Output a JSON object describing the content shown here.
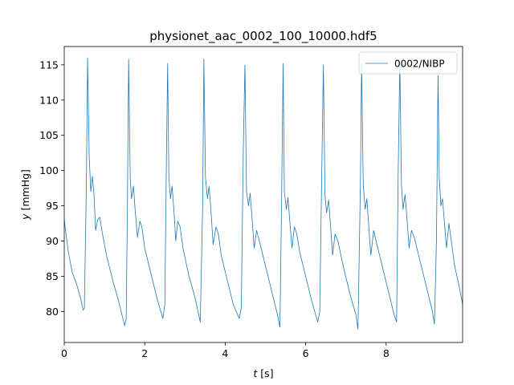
{
  "chart_data": {
    "type": "line",
    "title": "physionet_aac_0002_100_10000.hdf5",
    "xlabel_var": "t",
    "xlabel_unit": " [s]",
    "ylabel_var": "y",
    "ylabel_unit": " [mmHg]",
    "xlim": [
      0,
      9.9
    ],
    "ylim": [
      75.6,
      117.6
    ],
    "xticks": [
      0,
      2,
      4,
      6,
      8
    ],
    "yticks": [
      80,
      85,
      90,
      95,
      100,
      105,
      110,
      115
    ],
    "grid": false,
    "legend_position": "upper right",
    "line_color": "#1f77b4",
    "series": [
      {
        "name": "0002/NIBP",
        "x": [
          0.0,
          0.1,
          0.2,
          0.3,
          0.4,
          0.47,
          0.5,
          0.55,
          0.58,
          0.62,
          0.66,
          0.7,
          0.74,
          0.78,
          0.83,
          0.88,
          0.95,
          1.05,
          1.2,
          1.35,
          1.5,
          1.54,
          1.57,
          1.6,
          1.64,
          1.67,
          1.72,
          1.76,
          1.82,
          1.88,
          1.93,
          2.0,
          2.15,
          2.3,
          2.45,
          2.5,
          2.54,
          2.57,
          2.6,
          2.64,
          2.68,
          2.73,
          2.77,
          2.82,
          2.88,
          2.95,
          3.1,
          3.25,
          3.38,
          3.44,
          3.47,
          3.51,
          3.56,
          3.6,
          3.65,
          3.7,
          3.77,
          3.83,
          3.9,
          4.05,
          4.2,
          4.35,
          4.4,
          4.45,
          4.49,
          4.53,
          4.58,
          4.62,
          4.67,
          4.72,
          4.78,
          4.85,
          5.0,
          5.15,
          5.3,
          5.36,
          5.4,
          5.44,
          5.47,
          5.52,
          5.56,
          5.61,
          5.66,
          5.72,
          5.78,
          5.85,
          6.0,
          6.15,
          6.3,
          6.35,
          6.4,
          6.44,
          6.48,
          6.52,
          6.57,
          6.62,
          6.67,
          6.73,
          6.8,
          6.95,
          7.1,
          7.25,
          7.3,
          7.36,
          7.39,
          7.43,
          7.48,
          7.52,
          7.57,
          7.62,
          7.69,
          7.75,
          7.9,
          8.05,
          8.2,
          8.26,
          8.3,
          8.34,
          8.38,
          8.42,
          8.47,
          8.52,
          8.57,
          8.63,
          8.7,
          8.85,
          9.0,
          9.15,
          9.2,
          9.25,
          9.29,
          9.32,
          9.36,
          9.4,
          9.45,
          9.5,
          9.56,
          9.62,
          9.7,
          9.8,
          9.9
        ],
        "y": [
          93.0,
          88.5,
          85.5,
          84.0,
          82.0,
          80.2,
          80.5,
          98.0,
          116.0,
          102.0,
          97.0,
          99.2,
          96.5,
          91.5,
          93.0,
          93.4,
          91.0,
          88.0,
          84.5,
          81.5,
          78.0,
          79.0,
          95.0,
          115.8,
          99.0,
          96.0,
          97.8,
          94.5,
          90.5,
          92.8,
          92.0,
          89.0,
          85.5,
          82.0,
          79.0,
          81.0,
          102.0,
          115.2,
          99.0,
          96.0,
          97.8,
          94.0,
          90.0,
          92.8,
          92.0,
          89.0,
          85.0,
          82.0,
          78.5,
          95.0,
          115.8,
          99.0,
          96.0,
          97.8,
          94.0,
          89.5,
          92.0,
          91.0,
          88.0,
          84.5,
          81.0,
          79.0,
          80.5,
          103.0,
          115.0,
          97.0,
          95.0,
          96.8,
          93.0,
          89.0,
          91.5,
          90.0,
          86.5,
          83.0,
          79.5,
          77.8,
          95.0,
          115.2,
          97.0,
          94.5,
          96.2,
          92.5,
          89.0,
          92.0,
          91.0,
          88.5,
          85.0,
          81.5,
          78.5,
          80.0,
          100.0,
          115.0,
          96.5,
          94.0,
          95.8,
          92.0,
          88.0,
          91.0,
          90.0,
          86.0,
          82.5,
          79.5,
          77.5,
          98.0,
          115.2,
          98.0,
          94.5,
          96.0,
          92.0,
          88.0,
          91.5,
          90.0,
          86.5,
          83.0,
          79.5,
          78.5,
          100.0,
          115.4,
          98.0,
          94.5,
          96.6,
          93.0,
          89.0,
          91.5,
          90.5,
          87.0,
          83.5,
          80.0,
          78.2,
          90.0,
          113.5,
          99.0,
          95.0,
          96.0,
          92.5,
          89.0,
          92.5,
          90.0,
          86.5,
          84.0,
          81.0
        ]
      }
    ]
  }
}
